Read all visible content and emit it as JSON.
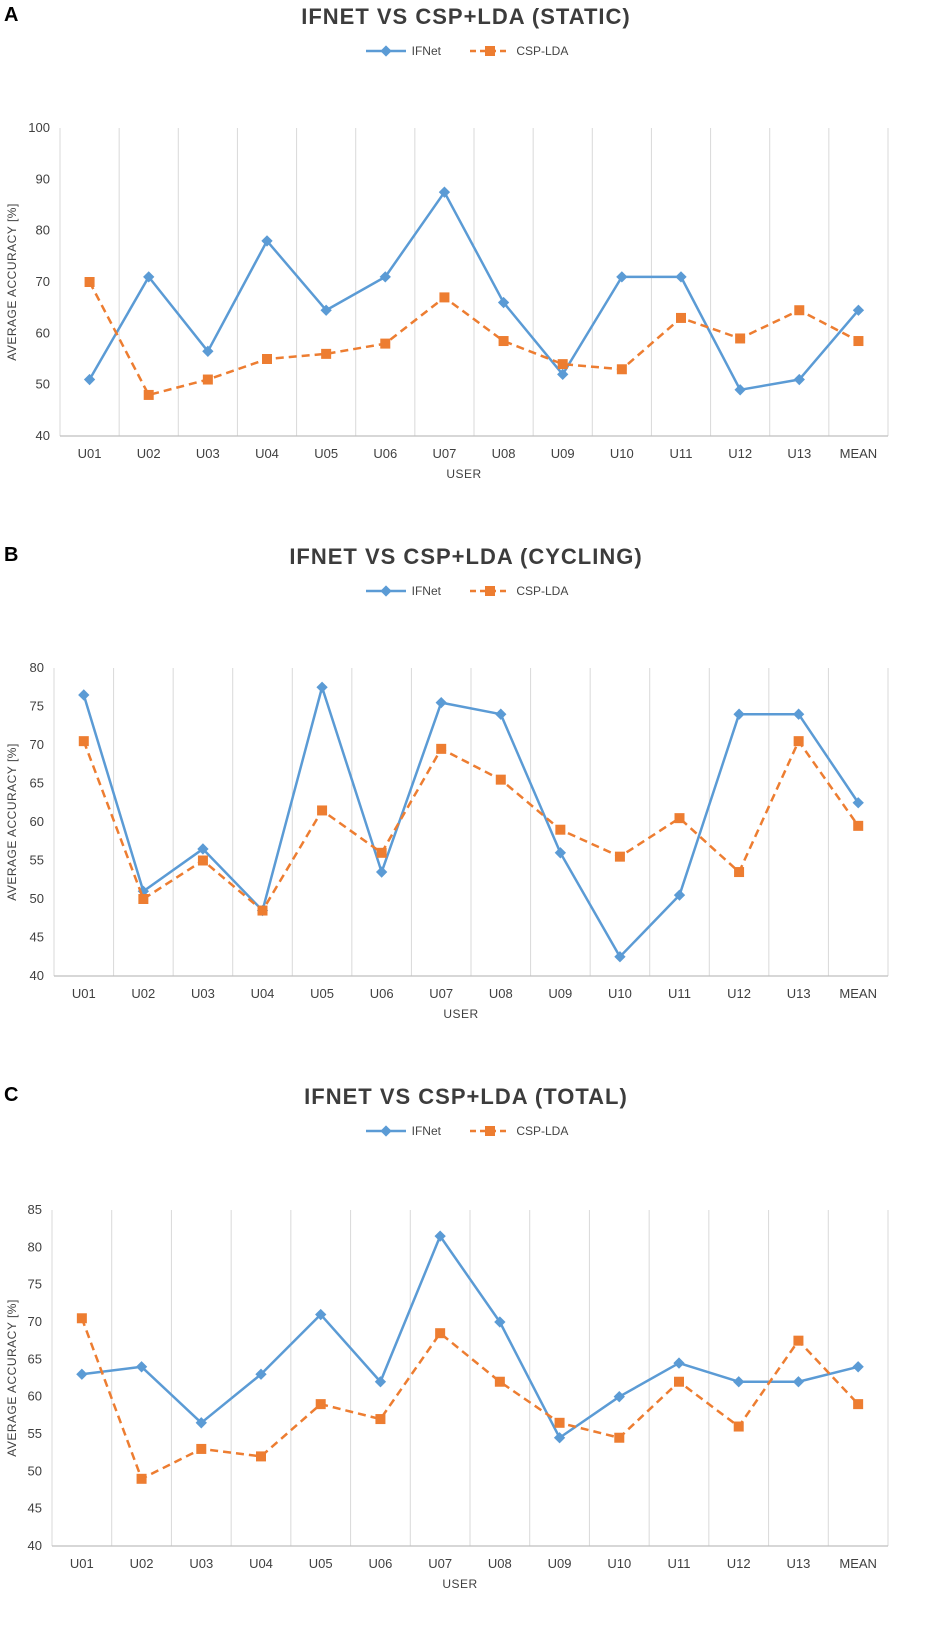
{
  "legend": {
    "series1": "IFNet",
    "series2": "CSP-LDA"
  },
  "colors": {
    "ifnet": "#5b9bd5",
    "csplda": "#ed7d31",
    "grid": "#d9d9d9",
    "text": "#404040"
  },
  "chart_data": [
    {
      "panel": "A",
      "type": "line",
      "title": "IFNET VS CSP+LDA (STATIC)",
      "xlabel": "USER",
      "ylabel": "AVERAGE ACCURACY [%]",
      "categories": [
        "U01",
        "U02",
        "U03",
        "U04",
        "U05",
        "U06",
        "U07",
        "U08",
        "U09",
        "U10",
        "U11",
        "U12",
        "U13",
        "MEAN"
      ],
      "ylim": [
        40,
        100
      ],
      "yticks": [
        40,
        50,
        60,
        70,
        80,
        90,
        100
      ],
      "series": [
        {
          "name": "IFNet",
          "values": [
            51,
            71,
            56.5,
            78,
            64.5,
            71,
            87.5,
            66,
            52,
            71,
            71,
            49,
            51,
            64.5
          ]
        },
        {
          "name": "CSP-LDA",
          "values": [
            70,
            48,
            51,
            55,
            56,
            58,
            67,
            58.5,
            54,
            53,
            63,
            59,
            64.5,
            58.5
          ]
        }
      ]
    },
    {
      "panel": "B",
      "type": "line",
      "title": "IFNET VS CSP+LDA (CYCLING)",
      "xlabel": "USER",
      "ylabel": "AVERAGE ACCURACY [%]",
      "categories": [
        "U01",
        "U02",
        "U03",
        "U04",
        "U05",
        "U06",
        "U07",
        "U08",
        "U09",
        "U10",
        "U11",
        "U12",
        "U13",
        "MEAN"
      ],
      "ylim": [
        40,
        80
      ],
      "yticks": [
        40,
        45,
        50,
        55,
        60,
        65,
        70,
        75,
        80
      ],
      "series": [
        {
          "name": "IFNet",
          "values": [
            76.5,
            51,
            56.5,
            48.5,
            77.5,
            53.5,
            75.5,
            74,
            56,
            42.5,
            50.5,
            74,
            74,
            62.5
          ]
        },
        {
          "name": "CSP-LDA",
          "values": [
            70.5,
            50,
            55,
            48.5,
            61.5,
            56,
            69.5,
            65.5,
            59,
            55.5,
            60.5,
            53.5,
            70.5,
            59.5
          ]
        }
      ]
    },
    {
      "panel": "C",
      "type": "line",
      "title": "IFNET VS CSP+LDA (TOTAL)",
      "xlabel": "USER",
      "ylabel": "AVERAGE ACCURACY [%]",
      "categories": [
        "U01",
        "U02",
        "U03",
        "U04",
        "U05",
        "U06",
        "U07",
        "U08",
        "U09",
        "U10",
        "U11",
        "U12",
        "U13",
        "MEAN"
      ],
      "ylim": [
        40,
        85
      ],
      "yticks": [
        40,
        45,
        50,
        55,
        60,
        65,
        70,
        75,
        80,
        85
      ],
      "series": [
        {
          "name": "IFNet",
          "values": [
            63,
            64,
            56.5,
            63,
            71,
            62,
            81.5,
            70,
            54.5,
            60,
            64.5,
            62,
            62,
            64
          ]
        },
        {
          "name": "CSP-LDA",
          "values": [
            70.5,
            49,
            53,
            52,
            59,
            57,
            68.5,
            62,
            56.5,
            54.5,
            62,
            56,
            67.5,
            59
          ]
        }
      ]
    }
  ]
}
